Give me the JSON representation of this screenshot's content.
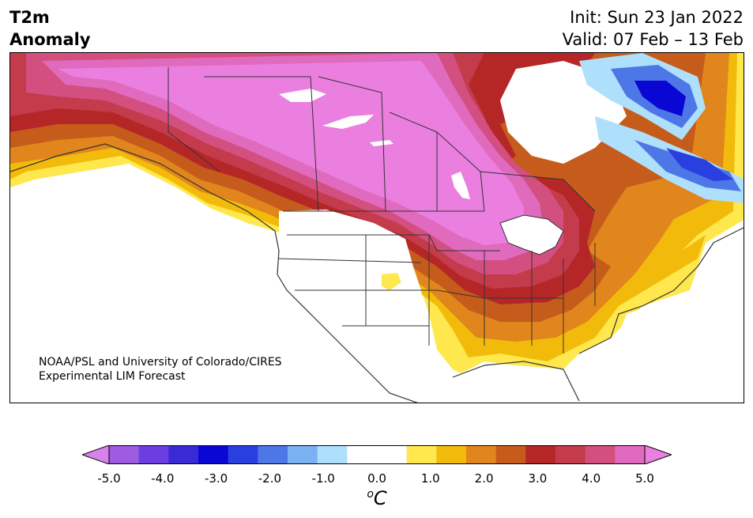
{
  "header": {
    "title_line1": "T2m",
    "title_line2": "Anomaly",
    "init": "Init: Sun 23 Jan 2022",
    "valid": "Valid: 07 Feb – 13 Feb"
  },
  "map": {
    "region": "North America",
    "credit_line1": "NOAA/PSL and University of Colorado/CIRES",
    "credit_line2": "Experimental LIM Forecast"
  },
  "colorbar": {
    "colors": [
      "#d783ed",
      "#9d5be0",
      "#6c3de0",
      "#3a2ad6",
      "#0a06d4",
      "#2a3fe0",
      "#4d77e6",
      "#79b1f3",
      "#aedffb",
      "#ffffff",
      "#ffffff",
      "#ffe74e",
      "#f2bb0c",
      "#e1861c",
      "#c65c1c",
      "#b52727",
      "#c43b4c",
      "#d34f80",
      "#e06abe",
      "#ea7fe0"
    ],
    "tick_labels": [
      "-5.0",
      "-4.0",
      "-3.0",
      "-2.0",
      "-1.0",
      "0.0",
      "1.0",
      "2.0",
      "3.0",
      "4.0",
      "5.0"
    ],
    "unit_base": "C",
    "unit_sup": "o",
    "min": -5.0,
    "max": 5.0,
    "extend": "both"
  }
}
